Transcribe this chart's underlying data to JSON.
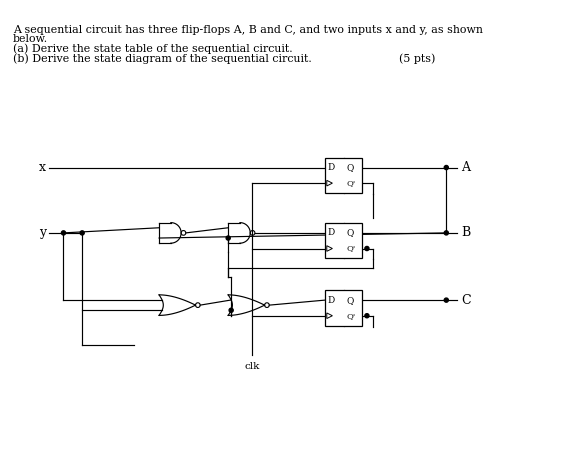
{
  "bg_color": "#ffffff",
  "text_color": "#000000",
  "header_lines": [
    "A sequential circuit has three flip-flops A, B and C, and two inputs x and y, as shown",
    "below.",
    "(a) Derive the state table of the sequential circuit.",
    "(b) Derive the state diagram of the sequential circuit."
  ],
  "pts_text": "(5 pts)",
  "labels": {
    "x": "x",
    "y": "y",
    "A": "A",
    "B": "B",
    "C": "C",
    "clk": "clk",
    "D": "D",
    "Q": "Q",
    "Qb": "Q'"
  }
}
